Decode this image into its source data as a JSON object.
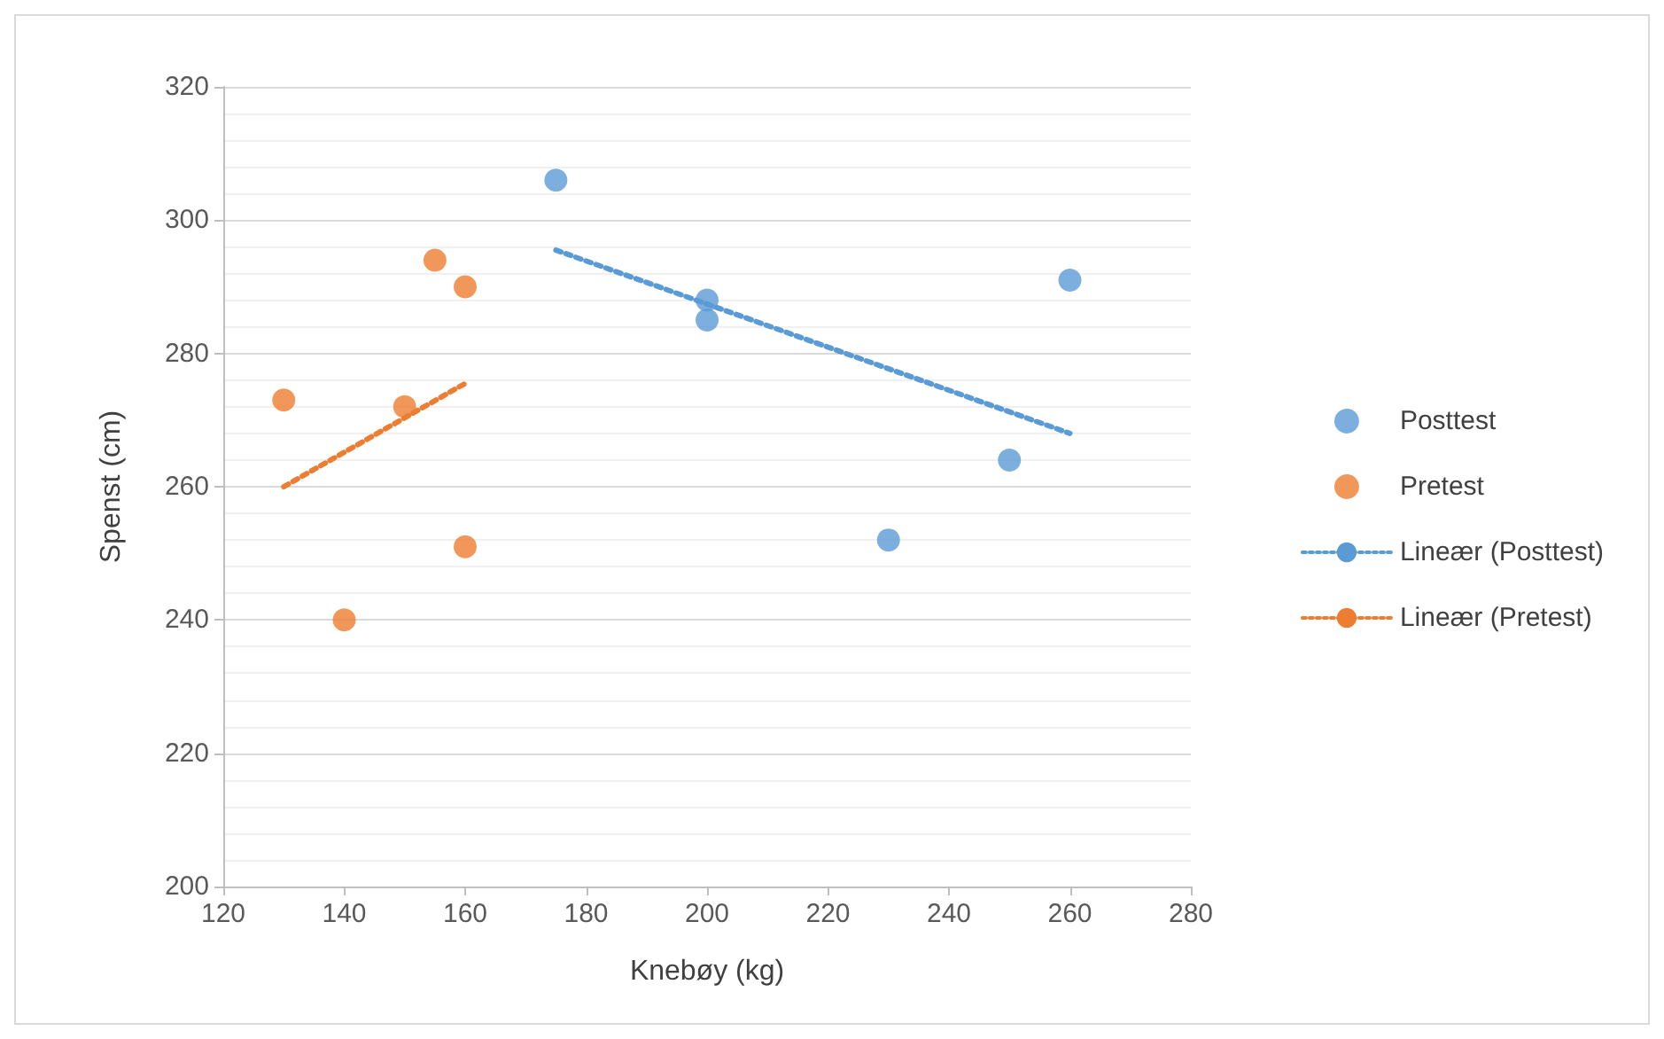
{
  "chart_data": {
    "type": "scatter",
    "xlabel": "Knebøy (kg)",
    "ylabel": "Spenst (cm)",
    "xlim": [
      120,
      280
    ],
    "xticks": [
      120,
      140,
      160,
      180,
      200,
      220,
      240,
      260,
      280
    ],
    "ylim": [
      200,
      320
    ],
    "yticks": [
      200,
      220,
      240,
      260,
      280,
      300,
      320
    ],
    "grid": "y",
    "legend": "right",
    "marker": "circle",
    "series": [
      {
        "name": "Posttest",
        "color": "#5b9bd5",
        "x": [
          175,
          200,
          200,
          230,
          250,
          260
        ],
        "values": [
          306,
          288,
          285,
          252,
          264,
          291
        ]
      },
      {
        "name": "Pretest",
        "color": "#ed7d31",
        "x": [
          130,
          140,
          150,
          155,
          160,
          160
        ],
        "values": [
          273,
          240,
          272,
          294,
          290,
          251
        ]
      },
      {
        "name": "Lineær (Posttest)",
        "type": "line",
        "color": "#5b9bd5",
        "line_style": "dotted",
        "marker": "none",
        "x": [
          175,
          260
        ],
        "values": [
          295.5,
          268
        ]
      },
      {
        "name": "Lineær (Pretest)",
        "type": "line",
        "color": "#ed7d31",
        "line_style": "dotted",
        "marker": "none",
        "x": [
          130,
          160
        ],
        "values": [
          260,
          275.5
        ]
      }
    ]
  }
}
